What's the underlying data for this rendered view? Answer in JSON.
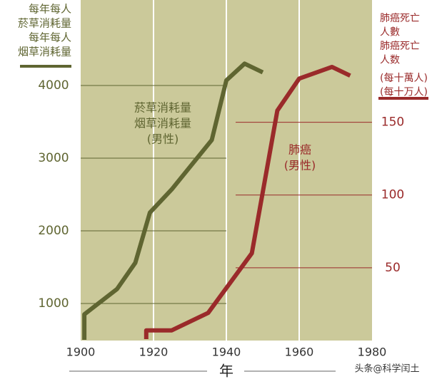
{
  "chart_data": {
    "type": "line",
    "ylabel": [
      "每年每人",
      "菸草消耗量",
      "每年每人",
      "烟草消耗量"
    ],
    "y2label": [
      "肺癌死亡",
      "人數",
      "肺癌死亡",
      "人数",
      "(每十萬人)",
      "(每十万人)"
    ],
    "xlabel": "年",
    "annotations": [
      [
        "菸草消耗量",
        "烟草消耗量",
        "(男性)"
      ],
      [
        "肺癌",
        "(男性)"
      ]
    ],
    "watermark": "头条@科学闰土",
    "xlim": [
      1900,
      1980
    ],
    "xticks": [
      1900,
      1920,
      1940,
      1960,
      1980
    ],
    "ylim": [
      490,
      5176
    ],
    "yticks": [
      1000,
      2000,
      3000,
      4000
    ],
    "y2lim": [
      0,
      234
    ],
    "y2ticks": [
      50,
      100,
      150
    ],
    "grid": true,
    "series": [
      {
        "color": "#5f6531",
        "x": [
          1901,
          1901,
          1910,
          1915,
          1919,
          1925,
          1936,
          1940,
          1945,
          1950
        ],
        "values": [
          500,
          850,
          1200,
          1560,
          2250,
          2570,
          3250,
          4070,
          4300,
          4180
        ]
      },
      {
        "color": "#9a2a2a",
        "axis": "y2",
        "x": [
          1918,
          1918,
          1925,
          1935,
          1947,
          1954,
          1960,
          1969,
          1974
        ],
        "values": [
          1,
          7,
          7,
          19,
          60,
          158,
          180,
          188,
          182
        ]
      }
    ]
  }
}
